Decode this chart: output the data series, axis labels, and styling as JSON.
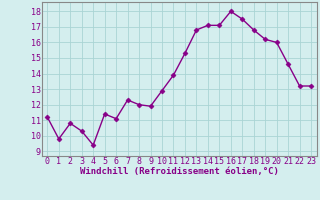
{
  "x": [
    0,
    1,
    2,
    3,
    4,
    5,
    6,
    7,
    8,
    9,
    10,
    11,
    12,
    13,
    14,
    15,
    16,
    17,
    18,
    19,
    20,
    21,
    22,
    23
  ],
  "y": [
    11.2,
    9.8,
    10.8,
    10.3,
    9.4,
    11.4,
    11.1,
    12.3,
    12.0,
    11.9,
    12.9,
    13.9,
    15.3,
    16.8,
    17.1,
    17.1,
    18.0,
    17.5,
    16.8,
    16.2,
    16.0,
    14.6,
    13.2,
    13.2
  ],
  "line_color": "#880088",
  "marker": "D",
  "markersize": 2.5,
  "linewidth": 1.0,
  "bg_color": "#d4eeee",
  "grid_color": "#aad4d4",
  "xlabel": "Windchill (Refroidissement éolien,°C)",
  "xlabel_fontsize": 6.5,
  "yticks": [
    9,
    10,
    11,
    12,
    13,
    14,
    15,
    16,
    17,
    18
  ],
  "xticks": [
    0,
    1,
    2,
    3,
    4,
    5,
    6,
    7,
    8,
    9,
    10,
    11,
    12,
    13,
    14,
    15,
    16,
    17,
    18,
    19,
    20,
    21,
    22,
    23
  ],
  "ylim": [
    8.7,
    18.6
  ],
  "xlim": [
    -0.5,
    23.5
  ],
  "tick_fontsize": 6,
  "tick_color": "#880088",
  "spine_color": "#888888"
}
